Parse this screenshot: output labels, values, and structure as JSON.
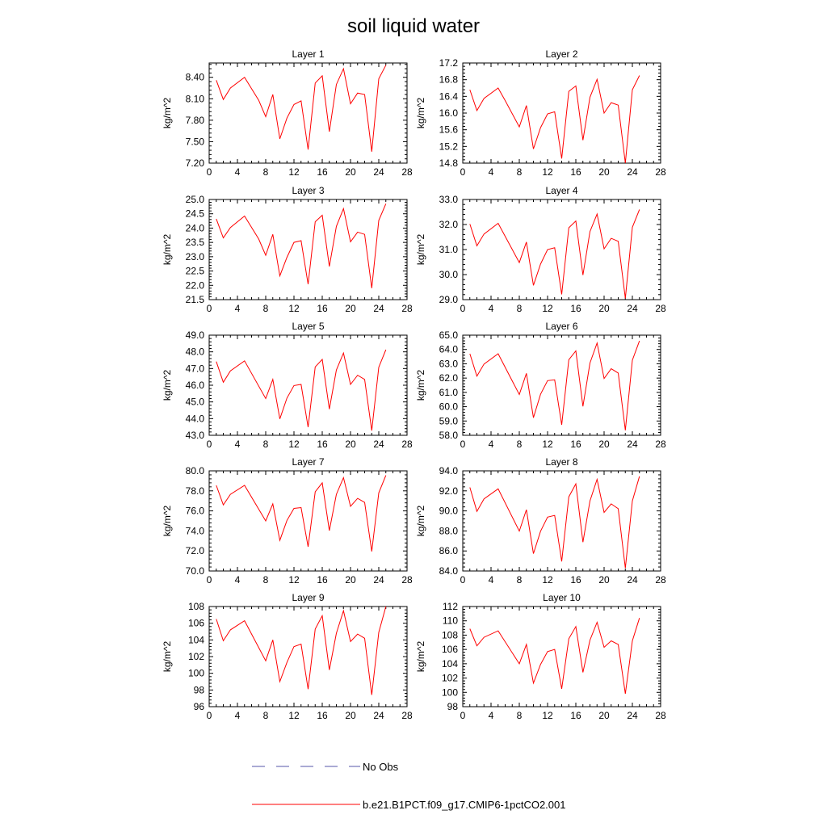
{
  "title": "soil liquid water",
  "legend": {
    "items": [
      {
        "label": "No Obs",
        "style": "dashed",
        "color": "#5555aa"
      },
      {
        "label": "b.e21.B1PCT.f09_g17.CMIP6-1pctCO2.001",
        "style": "solid",
        "color": "#ff0000"
      }
    ]
  },
  "chart_data": [
    {
      "type": "line",
      "title": "Layer 1",
      "ylabel": "kg/m^2",
      "xlim": [
        0,
        28
      ],
      "xticks": [
        "0",
        "4",
        "8",
        "12",
        "16",
        "20",
        "24",
        "28"
      ],
      "ylim": [
        7.2,
        8.6
      ],
      "yticks": [
        "7.20",
        "7.50",
        "7.80",
        "8.10",
        "8.40"
      ],
      "series": [
        {
          "name": "b.e21.B1PCT.f09_g17.CMIP6-1pctCO2.001",
          "color": "#ff0000",
          "x": [
            1,
            2,
            3,
            5,
            7,
            8,
            9,
            10,
            11,
            12,
            13,
            14,
            15,
            16,
            17,
            18,
            19,
            20,
            21,
            22,
            23,
            24,
            25
          ],
          "y": [
            8.36,
            8.09,
            8.25,
            8.4,
            8.08,
            7.85,
            8.16,
            7.54,
            7.83,
            8.02,
            8.07,
            7.39,
            8.32,
            8.42,
            7.64,
            8.3,
            8.52,
            8.03,
            8.18,
            8.16,
            7.36,
            8.38,
            8.57
          ]
        }
      ]
    },
    {
      "type": "line",
      "title": "Layer 2",
      "ylabel": "kg/m^2",
      "xlim": [
        0,
        28
      ],
      "xticks": [
        "0",
        "4",
        "8",
        "12",
        "16",
        "20",
        "24",
        "28"
      ],
      "ylim": [
        14.8,
        17.2
      ],
      "yticks": [
        "14.8",
        "15.2",
        "15.6",
        "16.0",
        "16.4",
        "16.8",
        "17.2"
      ],
      "series": [
        {
          "name": "b.e21.B1PCT.f09_g17.CMIP6-1pctCO2.001",
          "color": "#ff0000",
          "x": [
            1,
            2,
            3,
            5,
            6,
            8,
            9,
            10,
            11,
            12,
            13,
            14,
            15,
            16,
            17,
            18,
            19,
            20,
            21,
            22,
            23,
            24,
            25
          ],
          "y": [
            16.56,
            16.06,
            16.35,
            16.6,
            16.3,
            15.67,
            16.18,
            15.14,
            15.65,
            15.98,
            16.03,
            14.91,
            16.52,
            16.65,
            15.35,
            16.38,
            16.81,
            16.0,
            16.25,
            16.19,
            14.8,
            16.56,
            16.9
          ]
        }
      ]
    },
    {
      "type": "line",
      "title": "Layer 3",
      "ylabel": "kg/m^2",
      "xlim": [
        0,
        28
      ],
      "xticks": [
        "0",
        "4",
        "8",
        "12",
        "16",
        "20",
        "24",
        "28"
      ],
      "ylim": [
        21.5,
        25.0
      ],
      "yticks": [
        "21.5",
        "22.0",
        "22.5",
        "23.0",
        "23.5",
        "24.0",
        "24.5",
        "25.0"
      ],
      "series": [
        {
          "name": "b.e21.B1PCT.f09_g17.CMIP6-1pctCO2.001",
          "color": "#ff0000",
          "x": [
            1,
            2,
            3,
            5,
            7,
            8,
            9,
            10,
            11,
            12,
            13,
            14,
            15,
            16,
            17,
            18,
            19,
            20,
            21,
            22,
            23,
            24,
            25
          ],
          "y": [
            24.32,
            23.66,
            24.02,
            24.42,
            23.62,
            23.05,
            23.78,
            22.33,
            22.98,
            23.5,
            23.56,
            22.04,
            24.22,
            24.45,
            22.66,
            24.06,
            24.68,
            23.52,
            23.86,
            23.78,
            21.9,
            24.27,
            24.85
          ]
        }
      ]
    },
    {
      "type": "line",
      "title": "Layer 4",
      "ylabel": "kg/m^2",
      "xlim": [
        0,
        28
      ],
      "xticks": [
        "0",
        "4",
        "8",
        "12",
        "16",
        "20",
        "24",
        "28"
      ],
      "ylim": [
        29.0,
        33.0
      ],
      "yticks": [
        "29.0",
        "30.0",
        "31.0",
        "32.0",
        "33.0"
      ],
      "series": [
        {
          "name": "b.e21.B1PCT.f09_g17.CMIP6-1pctCO2.001",
          "color": "#ff0000",
          "x": [
            1,
            2,
            3,
            5,
            8,
            9,
            10,
            11,
            12,
            13,
            14,
            15,
            16,
            17,
            18,
            19,
            20,
            21,
            22,
            23,
            24,
            25
          ],
          "y": [
            32.02,
            31.15,
            31.62,
            32.05,
            30.48,
            31.3,
            29.57,
            30.42,
            31.0,
            31.07,
            29.21,
            31.87,
            32.14,
            29.98,
            31.72,
            32.42,
            31.03,
            31.45,
            31.33,
            29.05,
            31.89,
            32.6
          ]
        }
      ]
    },
    {
      "type": "line",
      "title": "Layer 5",
      "ylabel": "kg/m^2",
      "xlim": [
        0,
        28
      ],
      "xticks": [
        "0",
        "4",
        "8",
        "12",
        "16",
        "20",
        "24",
        "28"
      ],
      "ylim": [
        43.0,
        49.0
      ],
      "yticks": [
        "43.0",
        "44.0",
        "45.0",
        "46.0",
        "47.0",
        "48.0",
        "49.0"
      ],
      "series": [
        {
          "name": "b.e21.B1PCT.f09_g17.CMIP6-1pctCO2.001",
          "color": "#ff0000",
          "x": [
            1,
            2,
            3,
            5,
            8,
            9,
            10,
            11,
            12,
            13,
            14,
            15,
            16,
            17,
            18,
            19,
            20,
            21,
            22,
            23,
            24,
            25
          ],
          "y": [
            47.42,
            46.18,
            46.86,
            47.46,
            45.2,
            46.35,
            43.98,
            45.23,
            45.98,
            46.05,
            43.49,
            47.1,
            47.55,
            44.57,
            46.91,
            47.93,
            46.05,
            46.6,
            46.35,
            43.28,
            47.08,
            48.13
          ]
        }
      ]
    },
    {
      "type": "line",
      "title": "Layer 6",
      "ylabel": "kg/m^2",
      "xlim": [
        0,
        28
      ],
      "xticks": [
        "0",
        "4",
        "8",
        "12",
        "16",
        "20",
        "24",
        "28"
      ],
      "ylim": [
        58.0,
        65.0
      ],
      "yticks": [
        "58.0",
        "59.0",
        "60.0",
        "61.0",
        "62.0",
        "63.0",
        "64.0",
        "65.0"
      ],
      "series": [
        {
          "name": "b.e21.B1PCT.f09_g17.CMIP6-1pctCO2.001",
          "color": "#ff0000",
          "x": [
            1,
            2,
            3,
            5,
            8,
            9,
            10,
            11,
            12,
            13,
            14,
            15,
            16,
            17,
            18,
            19,
            20,
            21,
            22,
            23,
            24,
            25
          ],
          "y": [
            63.7,
            62.13,
            62.98,
            63.7,
            60.85,
            62.33,
            59.23,
            60.87,
            61.82,
            61.88,
            58.73,
            63.28,
            63.9,
            60.02,
            63.05,
            64.45,
            61.97,
            62.65,
            62.35,
            58.35,
            63.25,
            64.6
          ]
        }
      ]
    },
    {
      "type": "line",
      "title": "Layer 7",
      "ylabel": "kg/m^2",
      "xlim": [
        0,
        28
      ],
      "xticks": [
        "0",
        "4",
        "8",
        "12",
        "16",
        "20",
        "24",
        "28"
      ],
      "ylim": [
        70.0,
        80.0
      ],
      "yticks": [
        "70.0",
        "72.0",
        "74.0",
        "76.0",
        "78.0",
        "80.0"
      ],
      "series": [
        {
          "name": "b.e21.B1PCT.f09_g17.CMIP6-1pctCO2.001",
          "color": "#ff0000",
          "x": [
            1,
            2,
            3,
            5,
            8,
            9,
            10,
            11,
            12,
            13,
            14,
            15,
            16,
            17,
            18,
            19,
            20,
            21,
            22,
            23,
            24,
            25
          ],
          "y": [
            78.55,
            76.6,
            77.65,
            78.55,
            75.0,
            76.7,
            73.06,
            75.05,
            76.25,
            76.33,
            72.42,
            77.9,
            78.8,
            74.03,
            77.65,
            79.32,
            76.45,
            77.25,
            76.85,
            71.95,
            77.8,
            79.55
          ]
        }
      ]
    },
    {
      "type": "line",
      "title": "Layer 8",
      "ylabel": "kg/m^2",
      "xlim": [
        0,
        28
      ],
      "xticks": [
        "0",
        "4",
        "8",
        "12",
        "16",
        "20",
        "24",
        "28"
      ],
      "ylim": [
        84.0,
        94.0
      ],
      "yticks": [
        "84.0",
        "86.0",
        "88.0",
        "90.0",
        "92.0",
        "94.0"
      ],
      "series": [
        {
          "name": "b.e21.B1PCT.f09_g17.CMIP6-1pctCO2.001",
          "color": "#ff0000",
          "x": [
            1,
            2,
            3,
            5,
            8,
            9,
            10,
            11,
            12,
            13,
            14,
            15,
            16,
            17,
            18,
            19,
            20,
            21,
            22,
            23,
            24,
            25
          ],
          "y": [
            92.35,
            89.95,
            91.2,
            92.2,
            87.98,
            90.12,
            85.73,
            87.97,
            89.38,
            89.55,
            84.95,
            91.4,
            92.7,
            86.88,
            91.0,
            93.15,
            89.85,
            90.7,
            90.22,
            84.28,
            91.0,
            93.45
          ]
        }
      ]
    },
    {
      "type": "line",
      "title": "Layer 9",
      "ylabel": "kg/m^2",
      "xlim": [
        0,
        28
      ],
      "xticks": [
        "0",
        "4",
        "8",
        "12",
        "16",
        "20",
        "24",
        "28"
      ],
      "ylim": [
        96,
        108
      ],
      "yticks": [
        "96",
        "98",
        "100",
        "102",
        "104",
        "106",
        "108"
      ],
      "series": [
        {
          "name": "b.e21.B1PCT.f09_g17.CMIP6-1pctCO2.001",
          "color": "#ff0000",
          "x": [
            1,
            2,
            3,
            5,
            8,
            9,
            10,
            11,
            12,
            13,
            14,
            15,
            16,
            17,
            18,
            19,
            20,
            21,
            22,
            23,
            24,
            25
          ],
          "y": [
            106.5,
            103.9,
            105.2,
            106.3,
            101.5,
            104.0,
            99.0,
            101.3,
            103.2,
            103.5,
            98.1,
            105.3,
            106.9,
            100.4,
            104.8,
            107.5,
            103.8,
            104.7,
            104.2,
            97.4,
            104.9,
            108.0
          ]
        }
      ]
    },
    {
      "type": "line",
      "title": "Layer 10",
      "ylabel": "kg/m^2",
      "xlim": [
        0,
        28
      ],
      "xticks": [
        "0",
        "4",
        "8",
        "12",
        "16",
        "20",
        "24",
        "28"
      ],
      "ylim": [
        98,
        112
      ],
      "yticks": [
        "98",
        "100",
        "102",
        "104",
        "106",
        "108",
        "110",
        "112"
      ],
      "series": [
        {
          "name": "b.e21.B1PCT.f09_g17.CMIP6-1pctCO2.001",
          "color": "#ff0000",
          "x": [
            1,
            2,
            3,
            5,
            8,
            9,
            10,
            11,
            12,
            13,
            14,
            15,
            16,
            17,
            18,
            19,
            20,
            21,
            22,
            23,
            24,
            25
          ],
          "y": [
            108.9,
            106.5,
            107.7,
            108.6,
            104.0,
            106.7,
            101.3,
            103.9,
            105.7,
            106.0,
            100.5,
            107.5,
            109.2,
            102.8,
            107.3,
            109.8,
            106.3,
            107.2,
            106.7,
            99.8,
            107.2,
            110.4
          ]
        }
      ]
    }
  ]
}
